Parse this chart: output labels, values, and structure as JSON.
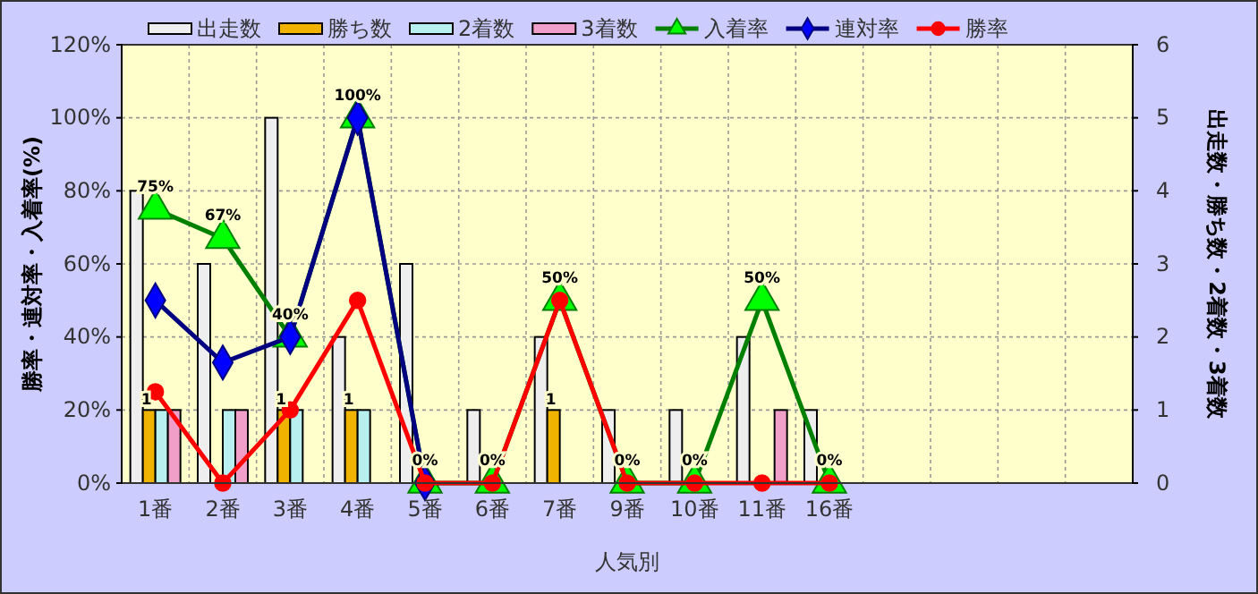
{
  "chart_data": {
    "type": "bar",
    "categories": [
      "1番",
      "2番",
      "3番",
      "4番",
      "5番",
      "6番",
      "7番",
      "9番",
      "10番",
      "11番",
      "16番",
      null,
      null,
      null,
      null
    ],
    "xlabel": "人気別",
    "ylabel": "勝率・連対率・入着率(%)",
    "y2label": "出走数・勝ち数・2着数・3着数",
    "ylim": [
      0,
      120
    ],
    "yticks": [
      {
        "value": 0,
        "label": "0%"
      },
      {
        "value": 20,
        "label": "20%"
      },
      {
        "value": 40,
        "label": "40%"
      },
      {
        "value": 60,
        "label": "60%"
      },
      {
        "value": 80,
        "label": "80%"
      },
      {
        "value": 100,
        "label": "100%"
      },
      {
        "value": 120,
        "label": "120%"
      }
    ],
    "y2lim": [
      0,
      6
    ],
    "y2ticks": [
      0,
      1,
      2,
      3,
      4,
      5,
      6
    ],
    "grid": true,
    "legend": "top",
    "series": [
      {
        "name": "出走数",
        "axis": "y2",
        "color": "#eeeeee",
        "values": [
          4,
          3,
          5,
          2,
          3,
          1,
          2,
          1,
          1,
          2,
          1,
          null,
          null,
          null,
          null
        ]
      },
      {
        "name": "勝ち数",
        "axis": "y2",
        "color": "#f0b400",
        "values": [
          1,
          0,
          1,
          1,
          0,
          0,
          1,
          0,
          0,
          0,
          0,
          null,
          null,
          null,
          null
        ],
        "value_labels": [
          "1",
          null,
          "1",
          "1",
          null,
          null,
          "1",
          null,
          null,
          null,
          null,
          null,
          null,
          null,
          null
        ]
      },
      {
        "name": "2着数",
        "axis": "y2",
        "color": "#b8f0f0",
        "values": [
          1,
          1,
          1,
          1,
          0,
          0,
          0,
          0,
          0,
          0,
          0,
          null,
          null,
          null,
          null
        ]
      },
      {
        "name": "3着数",
        "axis": "y2",
        "color": "#f0a0c8",
        "values": [
          1,
          1,
          0,
          0,
          0,
          0,
          0,
          0,
          0,
          1,
          0,
          null,
          null,
          null,
          null
        ]
      },
      {
        "name": "入着率",
        "type": "line",
        "marker": "triangle",
        "color": "#008000",
        "values": [
          75,
          67,
          40,
          100,
          0,
          0,
          50,
          0,
          0,
          50,
          0,
          null,
          null,
          null,
          null
        ],
        "value_labels": [
          "75%",
          "67%",
          "40%",
          "100%",
          "0%",
          "0%",
          "50%",
          "0%",
          "0%",
          "50%",
          "0%",
          null,
          null,
          null,
          null
        ]
      },
      {
        "name": "連対率",
        "type": "line",
        "marker": "diamond",
        "color": "#000080",
        "values": [
          50,
          33,
          40,
          100,
          0,
          null,
          null,
          null,
          null,
          null,
          null,
          null,
          null,
          null,
          null
        ]
      },
      {
        "name": "勝率",
        "type": "line",
        "marker": "circle",
        "color": "#ff0000",
        "values": [
          25,
          0,
          20,
          50,
          0,
          0,
          50,
          0,
          0,
          0,
          0,
          null,
          null,
          null,
          null
        ]
      }
    ]
  }
}
